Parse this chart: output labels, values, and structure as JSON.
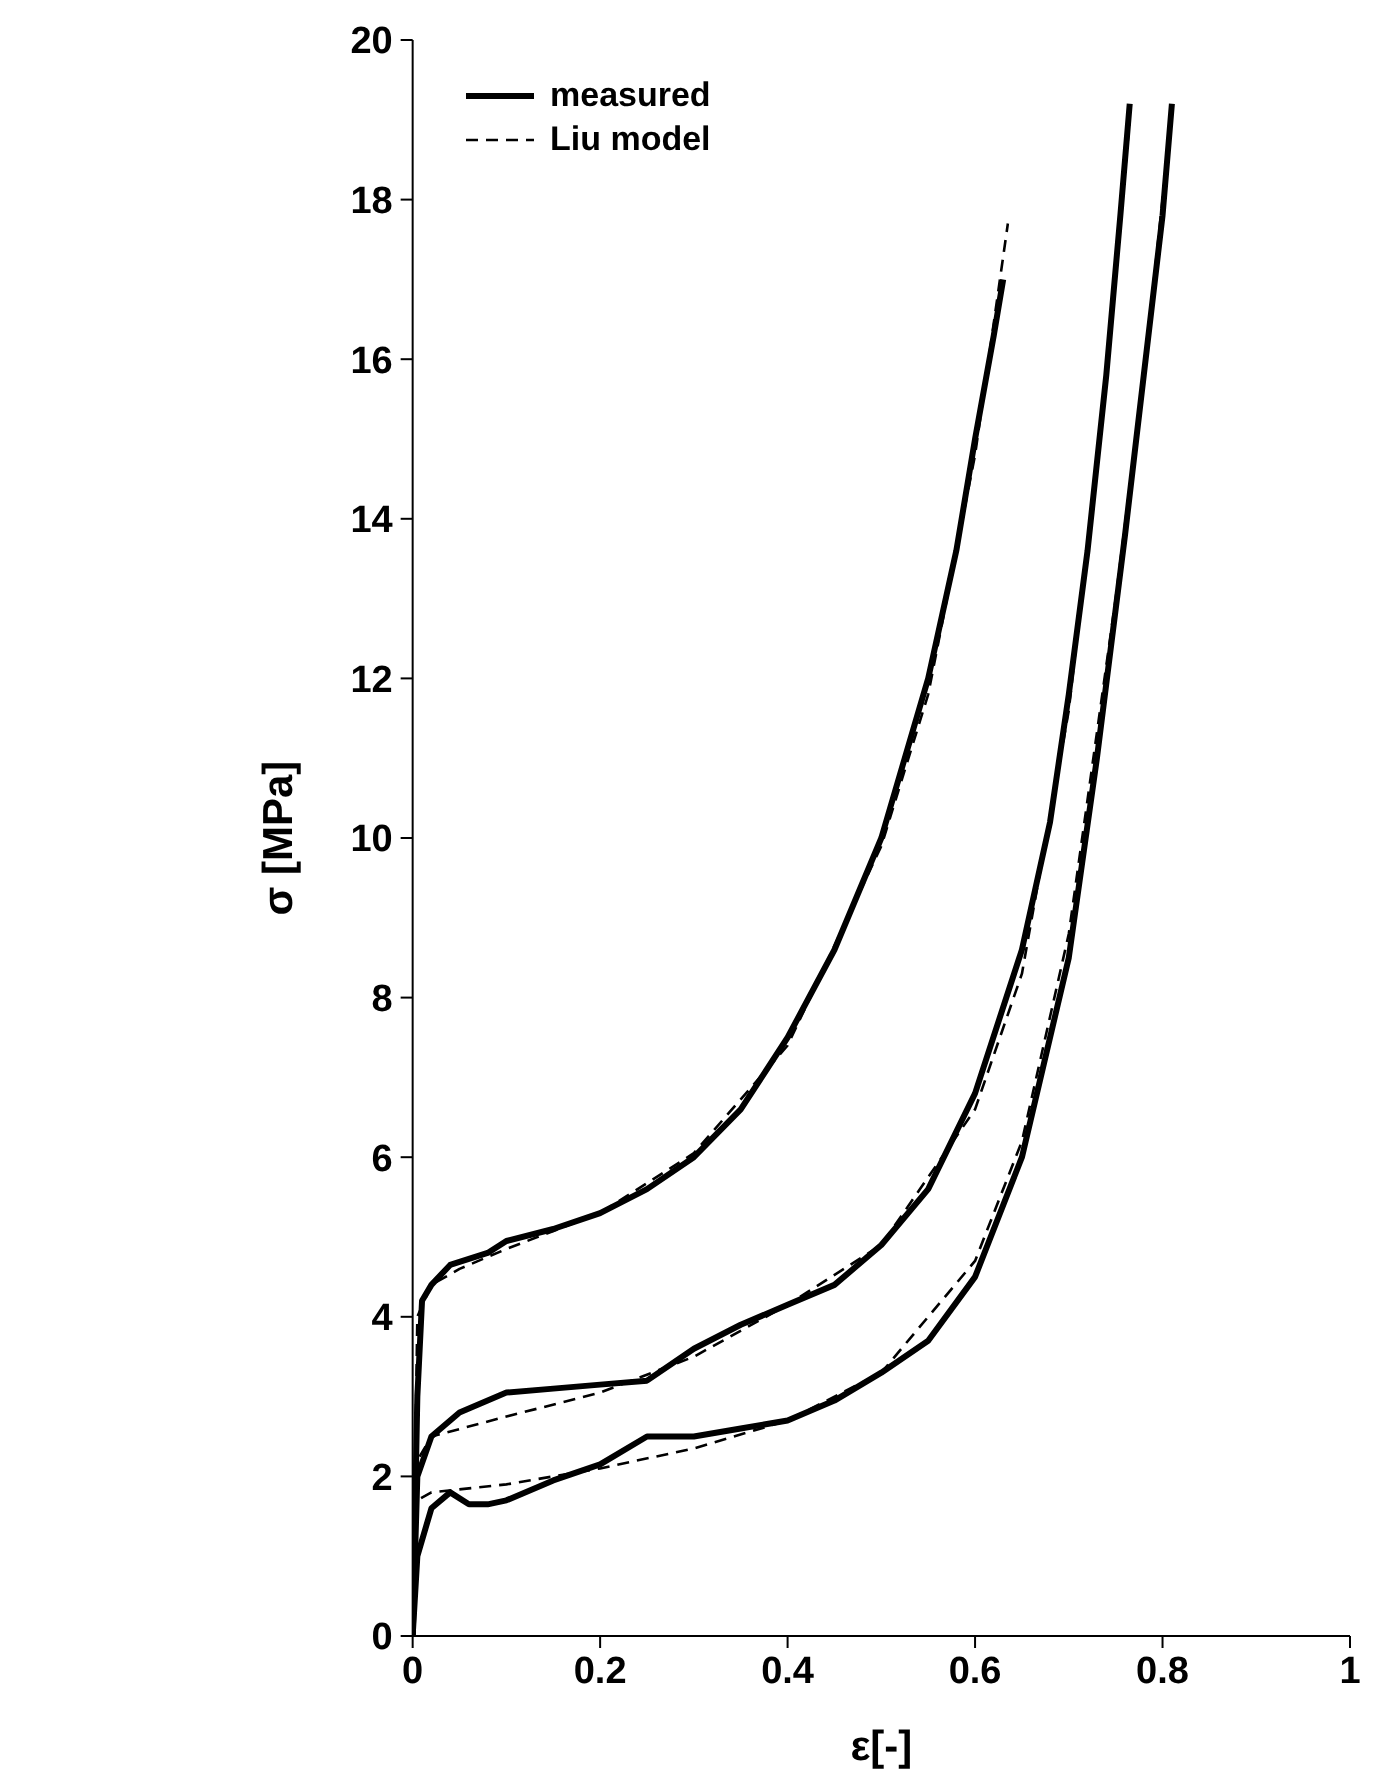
{
  "chart_data": {
    "type": "line",
    "xlabel": "ε[-]",
    "ylabel": "σ [MPa]",
    "xlim": [
      0,
      1
    ],
    "xticks": [
      0,
      0.2,
      0.4,
      0.6,
      0.8,
      1
    ],
    "ylim": [
      0,
      20
    ],
    "yticks": [
      0,
      2,
      4,
      6,
      8,
      10,
      12,
      14,
      16,
      18,
      20
    ],
    "grid": false,
    "legend": "top left",
    "marker": "none",
    "series": [
      {
        "name": "measured",
        "color": "#000000",
        "line_style": "solid",
        "x": [
          0,
          0.005,
          0.01,
          0.02,
          0.04,
          0.08,
          0.1,
          0.15,
          0.2,
          0.25,
          0.3,
          0.35,
          0.4,
          0.45,
          0.5,
          0.55,
          0.58,
          0.6,
          0.62,
          0.63
        ],
        "values": [
          0,
          3.0,
          4.2,
          4.4,
          4.65,
          4.8,
          4.95,
          5.1,
          5.3,
          5.6,
          6.0,
          6.6,
          7.5,
          8.6,
          10.0,
          12.0,
          13.6,
          15.0,
          16.3,
          17.0
        ]
      },
      {
        "name": "Liu model",
        "color": "#000000",
        "line_style": "dashed",
        "x": [
          0,
          0.005,
          0.02,
          0.05,
          0.1,
          0.2,
          0.3,
          0.4,
          0.5,
          0.55,
          0.6,
          0.635
        ],
        "values": [
          0,
          4.0,
          4.4,
          4.6,
          4.85,
          5.3,
          6.05,
          7.4,
          9.9,
          11.8,
          14.8,
          17.7
        ]
      },
      {
        "color": "#000000",
        "line_style": "solid",
        "x": [
          0,
          0.005,
          0.02,
          0.05,
          0.1,
          0.15,
          0.2,
          0.25,
          0.3,
          0.35,
          0.4,
          0.45,
          0.5,
          0.55,
          0.6,
          0.65,
          0.68,
          0.7,
          0.72,
          0.74,
          0.755,
          0.765
        ],
        "values": [
          0,
          2.0,
          2.5,
          2.8,
          3.05,
          3.1,
          3.15,
          3.2,
          3.6,
          3.9,
          4.15,
          4.4,
          4.9,
          5.6,
          6.8,
          8.6,
          10.2,
          11.8,
          13.6,
          15.8,
          17.8,
          19.2
        ]
      },
      {
        "color": "#000000",
        "line_style": "dashed",
        "x": [
          0,
          0.005,
          0.02,
          0.1,
          0.2,
          0.3,
          0.4,
          0.5,
          0.6,
          0.65,
          0.7,
          0.74,
          0.765
        ],
        "values": [
          0,
          2.2,
          2.5,
          2.75,
          3.05,
          3.5,
          4.15,
          4.9,
          6.6,
          8.3,
          11.6,
          15.8,
          19.0
        ]
      },
      {
        "color": "#000000",
        "line_style": "solid",
        "x": [
          0,
          0.005,
          0.02,
          0.04,
          0.06,
          0.08,
          0.1,
          0.15,
          0.2,
          0.25,
          0.3,
          0.35,
          0.4,
          0.45,
          0.5,
          0.55,
          0.6,
          0.65,
          0.7,
          0.73,
          0.76,
          0.78,
          0.8,
          0.81
        ],
        "values": [
          0,
          1.0,
          1.6,
          1.8,
          1.65,
          1.65,
          1.7,
          1.95,
          2.15,
          2.5,
          2.5,
          2.6,
          2.7,
          2.95,
          3.3,
          3.7,
          4.5,
          6.0,
          8.5,
          11.0,
          13.8,
          15.8,
          17.8,
          19.2
        ]
      },
      {
        "color": "#000000",
        "line_style": "dashed",
        "x": [
          0,
          0.005,
          0.02,
          0.1,
          0.2,
          0.3,
          0.4,
          0.5,
          0.6,
          0.65,
          0.7,
          0.75,
          0.78,
          0.81
        ],
        "values": [
          0,
          1.7,
          1.8,
          1.9,
          2.1,
          2.35,
          2.7,
          3.3,
          4.7,
          6.2,
          8.8,
          13.0,
          15.8,
          19.1
        ]
      }
    ]
  }
}
